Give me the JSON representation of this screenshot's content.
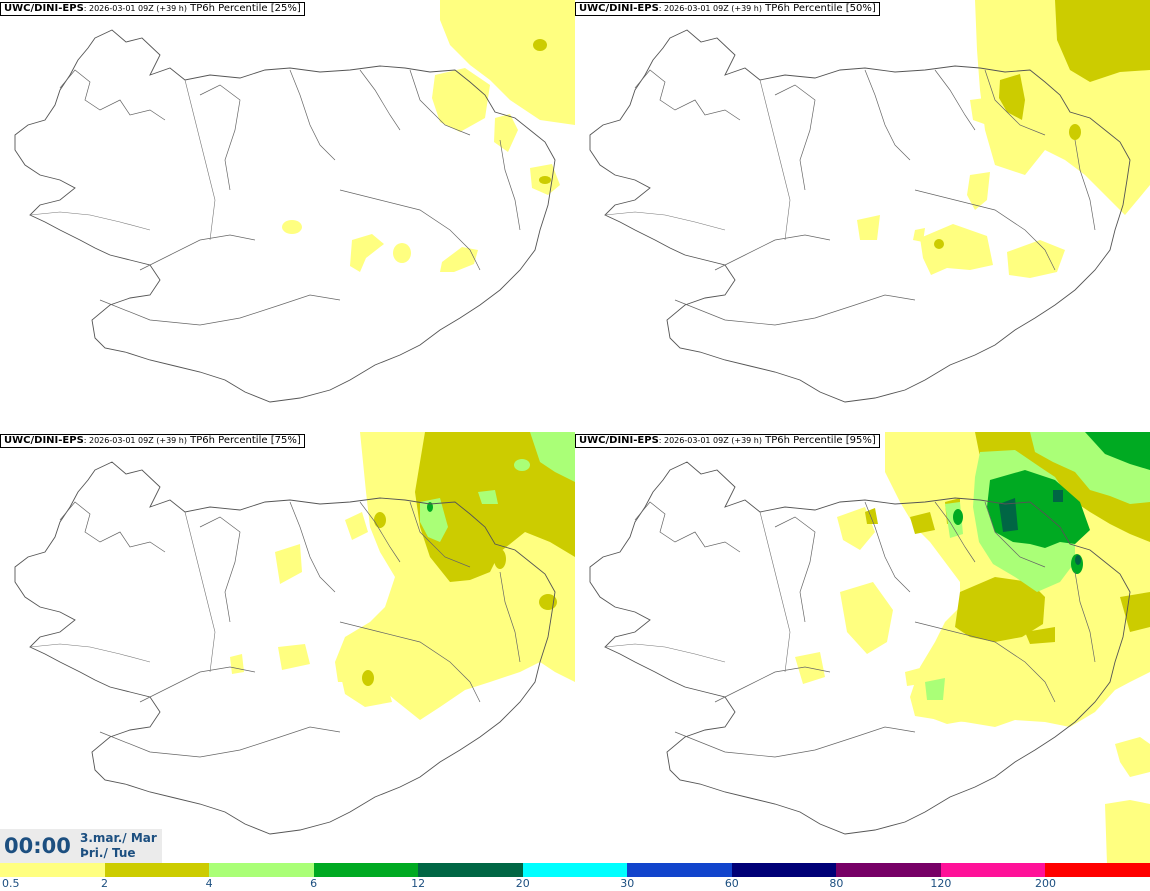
{
  "panels": [
    {
      "model": "UWC/DINI-EPS",
      "run": ": 2026-03-01 09Z (+39 h)",
      "field": " TP6h Percentile [25%]"
    },
    {
      "model": "UWC/DINI-EPS",
      "run": ": 2026-03-01 09Z (+39 h)",
      "field": " TP6h Percentile [50%]"
    },
    {
      "model": "UWC/DINI-EPS",
      "run": ": 2026-03-01 09Z (+39 h)",
      "field": " TP6h Percentile [75%]"
    },
    {
      "model": "UWC/DINI-EPS",
      "run": ": 2026-03-01 09Z (+39 h)",
      "field": " TP6h Percentile [95%]"
    }
  ],
  "valid_time": {
    "time": "00:00",
    "date_line1": "3.mar./ Mar",
    "date_line2": "Þri./ Tue"
  },
  "colorbar": {
    "colors": [
      "#ffff80",
      "#cccc00",
      "#aaff77",
      "#00aa22",
      "#006644",
      "#00ffff",
      "#1144cc",
      "#000077",
      "#770066",
      "#ff1199",
      "#ff0000"
    ],
    "labels": [
      "0.5",
      "2",
      "4",
      "6",
      "12",
      "20",
      "30",
      "60",
      "80",
      "120",
      "200"
    ]
  }
}
